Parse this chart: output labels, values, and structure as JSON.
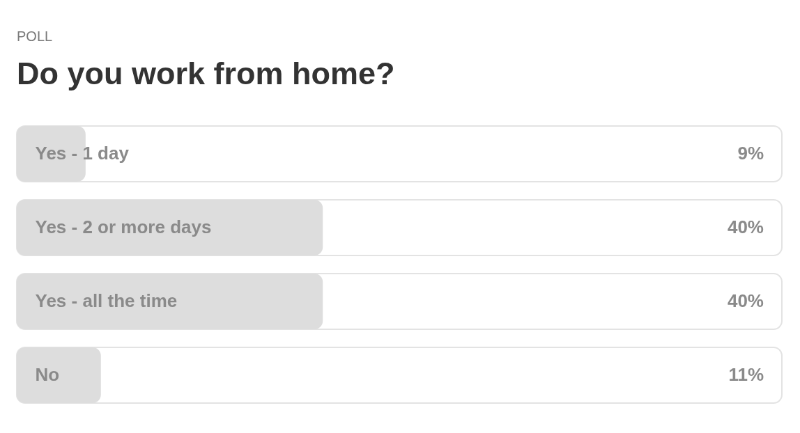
{
  "chart_data": {
    "type": "bar",
    "orientation": "horizontal",
    "subtitle": "POLL",
    "title": "Do you work from home?",
    "categories": [
      "Yes - 1 day",
      "Yes - 2 or more days",
      "Yes - all the time",
      "No"
    ],
    "values": [
      9,
      40,
      40,
      11
    ],
    "color": "#dddddd",
    "value_labels": [
      "9%",
      "40%",
      "40%",
      "11%"
    ],
    "xlim": [
      0,
      100
    ],
    "tick_labels": "y"
  }
}
